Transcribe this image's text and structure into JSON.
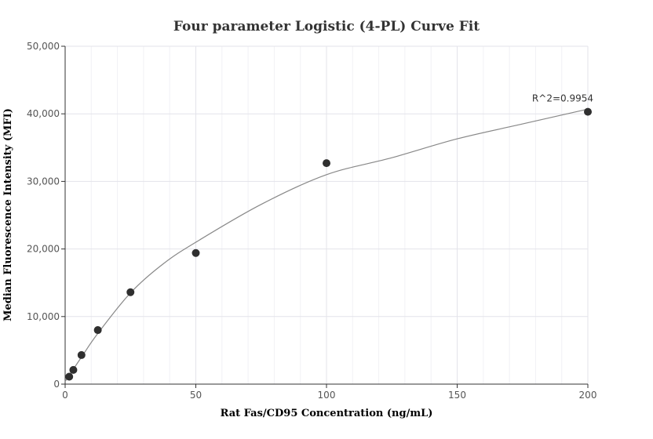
{
  "chart_data": {
    "type": "scatter",
    "title": "Four parameter Logistic (4-PL) Curve Fit",
    "xlabel": "Rat Fas/CD95 Concentration (ng/mL)",
    "ylabel": "Median Fluorescence Intensity (MFI)",
    "xlim": [
      0,
      200
    ],
    "ylim": [
      0,
      50000
    ],
    "x_ticks": [
      0,
      50,
      100,
      150,
      200
    ],
    "x_tick_labels": [
      "0",
      "50",
      "100",
      "150",
      "200"
    ],
    "y_ticks": [
      0,
      10000,
      20000,
      30000,
      40000,
      50000
    ],
    "y_tick_labels": [
      "0",
      "10,000",
      "20,000",
      "30,000",
      "40,000",
      "50,000"
    ],
    "grid": true,
    "series": [
      {
        "points": [
          {
            "x": 1.56,
            "y": 1100
          },
          {
            "x": 3.13,
            "y": 2100
          },
          {
            "x": 6.25,
            "y": 4300
          },
          {
            "x": 12.5,
            "y": 8000
          },
          {
            "x": 25,
            "y": 13600
          },
          {
            "x": 50,
            "y": 19400
          },
          {
            "x": 100,
            "y": 32700
          },
          {
            "x": 200,
            "y": 40300
          }
        ],
        "color": "#2f2f2f"
      }
    ],
    "fit_curve": {
      "type": "4PL",
      "points": [
        {
          "x": 0,
          "y": 400
        },
        {
          "x": 6.25,
          "y": 4000
        },
        {
          "x": 12.5,
          "y": 7500
        },
        {
          "x": 25,
          "y": 13500
        },
        {
          "x": 37.5,
          "y": 17800
        },
        {
          "x": 50,
          "y": 21000
        },
        {
          "x": 75,
          "y": 26600
        },
        {
          "x": 100,
          "y": 31000
        },
        {
          "x": 125,
          "y": 33500
        },
        {
          "x": 150,
          "y": 36300
        },
        {
          "x": 175,
          "y": 38500
        },
        {
          "x": 200,
          "y": 40700
        }
      ],
      "color": "#888888"
    },
    "annotation": "R^2=0.9954"
  }
}
